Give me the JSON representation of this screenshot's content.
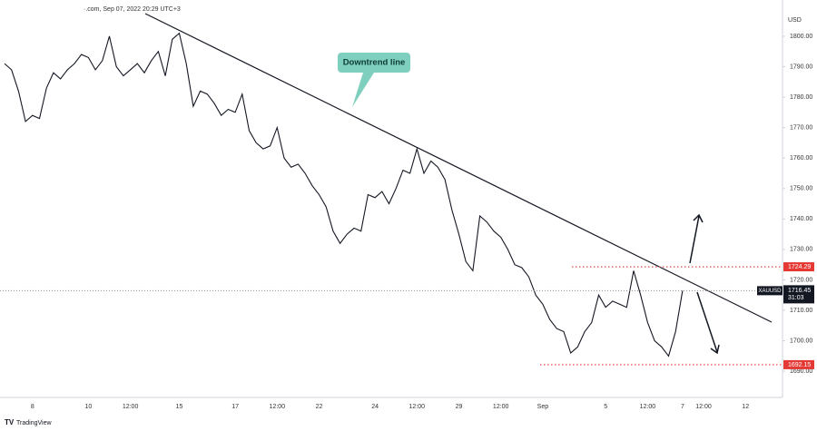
{
  "header": "·.com, Sep 07, 2022 20:29 UTC+3",
  "currency": "USD",
  "footer": "TradingView",
  "chart_data": {
    "type": "line",
    "symbol": "XAUUSD",
    "countdown": "31:03",
    "annotation": "Downtrend line",
    "levels": [
      1724.29,
      1692.15
    ],
    "categories": [
      null,
      null,
      null,
      null,
      "8",
      null,
      null,
      null,
      null,
      null,
      null,
      null,
      "10",
      null,
      null,
      null,
      null,
      null,
      "12:00",
      null,
      null,
      null,
      null,
      null,
      null,
      "15",
      null,
      null,
      null,
      null,
      null,
      null,
      null,
      "17",
      null,
      null,
      null,
      null,
      null,
      "12:00",
      null,
      null,
      null,
      null,
      null,
      "22",
      null,
      null,
      null,
      null,
      null,
      null,
      null,
      "24",
      null,
      null,
      null,
      null,
      null,
      "12:00",
      null,
      null,
      null,
      null,
      null,
      "29",
      null,
      null,
      null,
      null,
      null,
      "12:00",
      null,
      null,
      null,
      null,
      null,
      "Sep",
      null,
      null,
      null,
      null,
      null,
      null,
      null,
      null,
      "5",
      null,
      null,
      null,
      null,
      null,
      "12:00",
      null,
      null,
      null,
      null,
      "7",
      null,
      null,
      "12:00",
      null,
      null,
      null,
      null,
      null,
      "12",
      null,
      null,
      null
    ],
    "series": [
      {
        "name": "XAUUSD",
        "color": "#131722",
        "values": [
          1791,
          1789,
          1782,
          1772,
          1774,
          1773,
          1783,
          1788,
          1786,
          1789,
          1791,
          1794,
          1793,
          1789,
          1792,
          1800,
          1790,
          1787,
          1789,
          1791,
          1788,
          1792,
          1795,
          1787,
          1799,
          1801,
          1791,
          1777,
          1782,
          1781,
          1778,
          1774,
          1776,
          1775,
          1781,
          1769,
          1765,
          1763,
          1764,
          1770,
          1760,
          1757,
          1758,
          1755,
          1751,
          1748,
          1744,
          1736,
          1732,
          1735,
          1737,
          1736,
          1748,
          1747,
          1749,
          1745,
          1750,
          1756,
          1755,
          1763,
          1755,
          1759,
          1757,
          1753,
          1743,
          1735,
          1726,
          1723,
          1741,
          1739,
          1736,
          1734,
          1730,
          1725,
          1724,
          1721,
          1715,
          1712,
          1707,
          1704,
          1703,
          1696,
          1698,
          1703,
          1706,
          1715,
          1711,
          1713,
          1712,
          1711,
          1723,
          1715,
          1706,
          1700,
          1698,
          1695,
          1703,
          1716.45,
          null,
          null,
          null,
          null,
          null,
          null,
          null,
          null,
          null,
          null,
          null,
          null
        ]
      }
    ],
    "ylim": [
      1681.4,
      1811.9
    ],
    "yticks": [
      {
        "value": 1690,
        "label": "1690.00"
      },
      {
        "value": 1700,
        "label": "1700.00"
      },
      {
        "value": 1710,
        "label": "1710.00"
      },
      {
        "value": 1720,
        "label": "1720.00"
      },
      {
        "value": 1730,
        "label": "1730.00"
      },
      {
        "value": 1740,
        "label": "1740.00"
      },
      {
        "value": 1750,
        "label": "1750.00"
      },
      {
        "value": 1760,
        "label": "1760.00"
      },
      {
        "value": 1770,
        "label": "1770.00"
      },
      {
        "value": 1780,
        "label": "1780.00"
      },
      {
        "value": 1790,
        "label": "1790.00"
      },
      {
        "value": 1800,
        "label": "1800.00"
      }
    ],
    "grid": false
  }
}
